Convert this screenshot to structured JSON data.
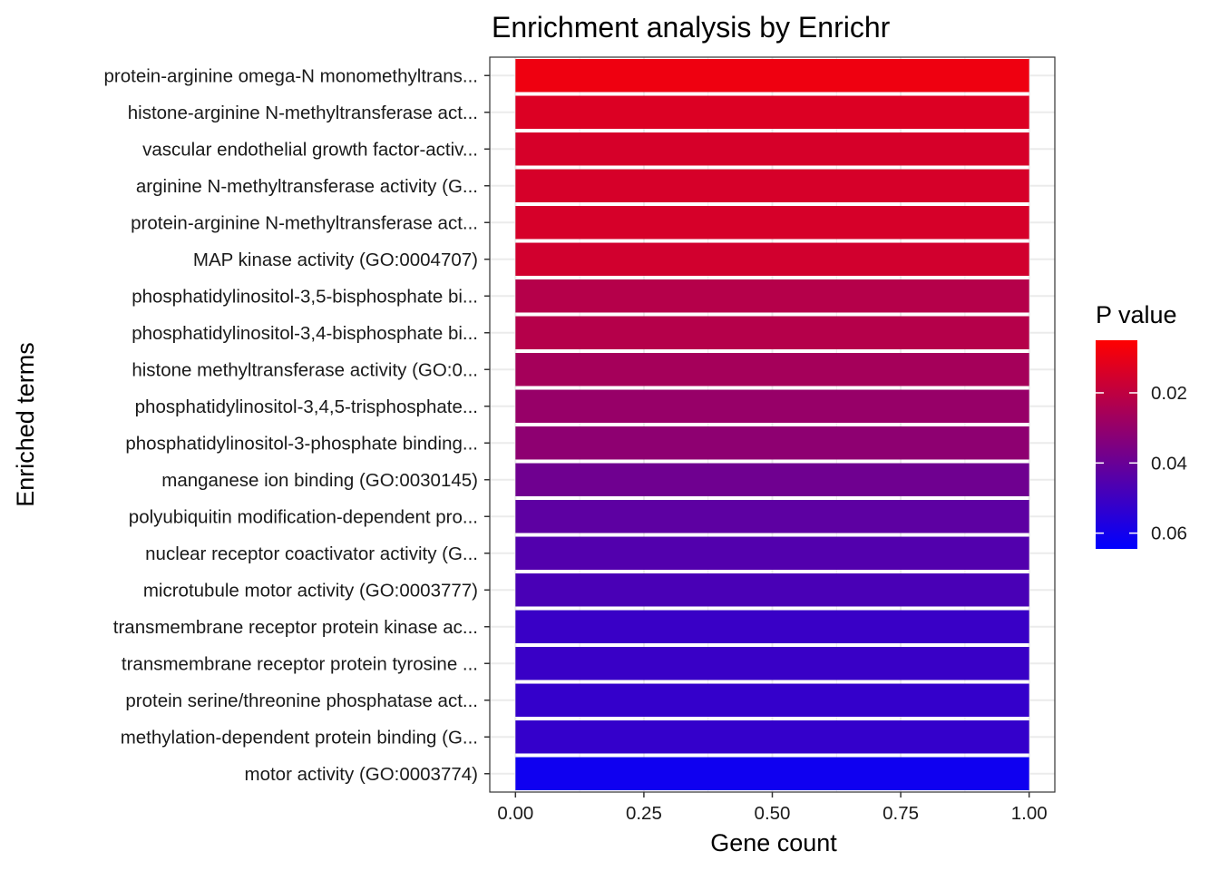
{
  "chart_data": {
    "type": "bar",
    "orientation": "horizontal",
    "title": "Enrichment analysis by Enrichr",
    "xlabel": "Gene count",
    "ylabel": "Enriched terms",
    "xlim": [
      -0.05,
      1.05
    ],
    "xticks": [
      0,
      0.25,
      0.5,
      0.75,
      1
    ],
    "xtick_labels": [
      "0.00",
      "0.25",
      "0.50",
      "0.75",
      "1.00"
    ],
    "grid": true,
    "categories": [
      "protein-arginine omega-N monomethyltrans...",
      "histone-arginine N-methyltransferase act...",
      "vascular endothelial growth factor-activ...",
      "arginine N-methyltransferase activity (G...",
      "protein-arginine N-methyltransferase act...",
      "MAP kinase activity (GO:0004707)",
      "phosphatidylinositol-3,5-bisphosphate bi...",
      "phosphatidylinositol-3,4-bisphosphate bi...",
      "histone methyltransferase activity (GO:0...",
      "phosphatidylinositol-3,4,5-trisphosphate...",
      "phosphatidylinositol-3-phosphate binding...",
      "manganese ion binding (GO:0030145)",
      "polyubiquitin modification-dependent pro...",
      "nuclear receptor coactivator activity (G...",
      "microtubule motor activity (GO:0003777)",
      "transmembrane receptor protein kinase ac...",
      "transmembrane receptor protein tyrosine ...",
      "protein serine/threonine phosphatase act...",
      "methylation-dependent protein binding (G...",
      "motor activity (GO:0003774)"
    ],
    "values": [
      1,
      1,
      1,
      1,
      1,
      1,
      1,
      1,
      1,
      1,
      1,
      1,
      1,
      1,
      1,
      1,
      1,
      1,
      1,
      1
    ],
    "p_values": [
      0.0087,
      0.0131,
      0.0145,
      0.0145,
      0.0145,
      0.0157,
      0.0222,
      0.0222,
      0.0261,
      0.0293,
      0.0313,
      0.0387,
      0.0428,
      0.0454,
      0.0474,
      0.0512,
      0.0512,
      0.0524,
      0.0524,
      0.061
    ],
    "legend": {
      "title": "P value",
      "position": "right",
      "range": [
        0.005,
        0.0645
      ],
      "low_color": "#ff0000",
      "high_color": "#0000ff",
      "ticks": [
        0.02,
        0.04,
        0.06
      ],
      "tick_labels": [
        "0.02",
        "0.04",
        "0.06"
      ]
    }
  }
}
